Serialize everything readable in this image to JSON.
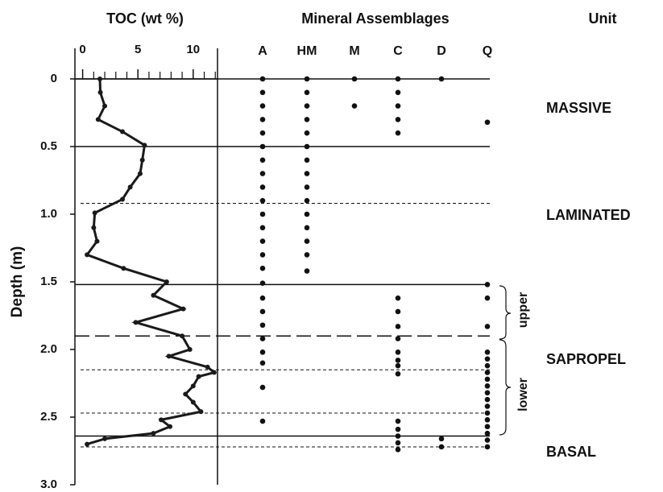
{
  "chart_data": {
    "type": "line",
    "x_title": "TOC (wt %)",
    "y_title": "Depth (m)",
    "y_inverted": true,
    "xlim": [
      -0.7,
      12.2
    ],
    "xticks": [
      0,
      5,
      10
    ],
    "xminorticks": [
      1,
      2,
      3,
      4,
      6,
      7,
      8,
      9,
      11,
      12
    ],
    "ylim": [
      0,
      3
    ],
    "yticks": [
      0,
      0.5,
      {
        "value": 1,
        "label": "1.0"
      },
      1.5,
      {
        "value": 2,
        "label": "2.0"
      },
      2.5,
      {
        "value": 3,
        "label": "3.0"
      }
    ],
    "color": "#1a1a1a",
    "series": [
      {
        "x": [
          1.56,
          1.6,
          2.0,
          1.4,
          3.6,
          5.6,
          5.4,
          5.2,
          4.3,
          3.6,
          1.1,
          1.0,
          1.3,
          0.4,
          3.7,
          7.6,
          6.4,
          9.1,
          4.8,
          9.0,
          9.7,
          7.8,
          11.3,
          11.9,
          10.5,
          10.0,
          9.3,
          10.0,
          10.7,
          7.1,
          7.9,
          6.4,
          2.0,
          0.4
        ],
        "values": [
          0,
          0.1,
          0.2,
          0.3,
          0.39,
          0.49,
          0.6,
          0.7,
          0.8,
          0.89,
          0.99,
          1.1,
          1.2,
          1.3,
          1.4,
          1.5,
          1.6,
          1.7,
          1.8,
          1.9,
          2.0,
          2.05,
          2.13,
          2.17,
          2.2,
          2.27,
          2.33,
          2.39,
          2.46,
          2.52,
          2.57,
          2.62,
          2.66,
          2.7
        ]
      }
    ],
    "boundaries": [
      {
        "depth": 0,
        "style": "solid"
      },
      {
        "depth": 0.5,
        "style": "solid"
      },
      {
        "depth": 0.92,
        "style": "dotted"
      },
      {
        "depth": 1.52,
        "style": "solid"
      },
      {
        "depth": 1.9,
        "style": "dashed"
      },
      {
        "depth": 2.15,
        "style": "dotted"
      },
      {
        "depth": 2.47,
        "style": "dotted"
      },
      {
        "depth": 2.64,
        "style": "solid"
      },
      {
        "depth": 2.72,
        "style": "dotted"
      }
    ],
    "mineral_assemblages": {
      "title": "Mineral Assemblages",
      "categories": [
        "A",
        "HM",
        "M",
        "C",
        "D",
        "Q"
      ],
      "depths": [
        [
          0,
          0.1,
          0.2,
          0.3,
          0.4,
          0.5,
          0.6,
          0.7,
          0.8,
          0.9,
          1.0,
          1.1,
          1.2,
          1.3,
          1.4,
          1.51,
          1.62,
          1.72,
          1.82,
          1.92,
          2.02,
          2.1,
          2.28,
          2.53
        ],
        [
          0,
          0.1,
          0.2,
          0.3,
          0.4,
          0.5,
          0.6,
          0.7,
          0.8,
          0.9,
          1.0,
          1.1,
          1.2,
          1.3,
          1.42
        ],
        [
          0,
          0.2
        ],
        [
          0,
          0.1,
          0.2,
          0.3,
          0.4,
          1.62,
          1.72,
          1.83,
          1.92,
          2.02,
          2.08,
          2.12,
          2.18,
          2.53,
          2.59,
          2.64,
          2.69,
          2.74
        ],
        [
          0,
          2.66,
          2.72
        ],
        [
          0.32,
          1.52,
          1.62,
          1.83,
          2.02,
          2.07,
          2.12,
          2.17,
          2.22,
          2.27,
          2.32,
          2.37,
          2.42,
          2.47,
          2.52,
          2.57,
          2.62,
          2.67,
          2.72
        ]
      ]
    },
    "units": {
      "title": "Unit",
      "labels": [
        "MASSIVE",
        "LAMINATED",
        "SAPROPEL",
        "BASAL"
      ],
      "subunits": [
        "upper",
        "lower"
      ]
    }
  }
}
